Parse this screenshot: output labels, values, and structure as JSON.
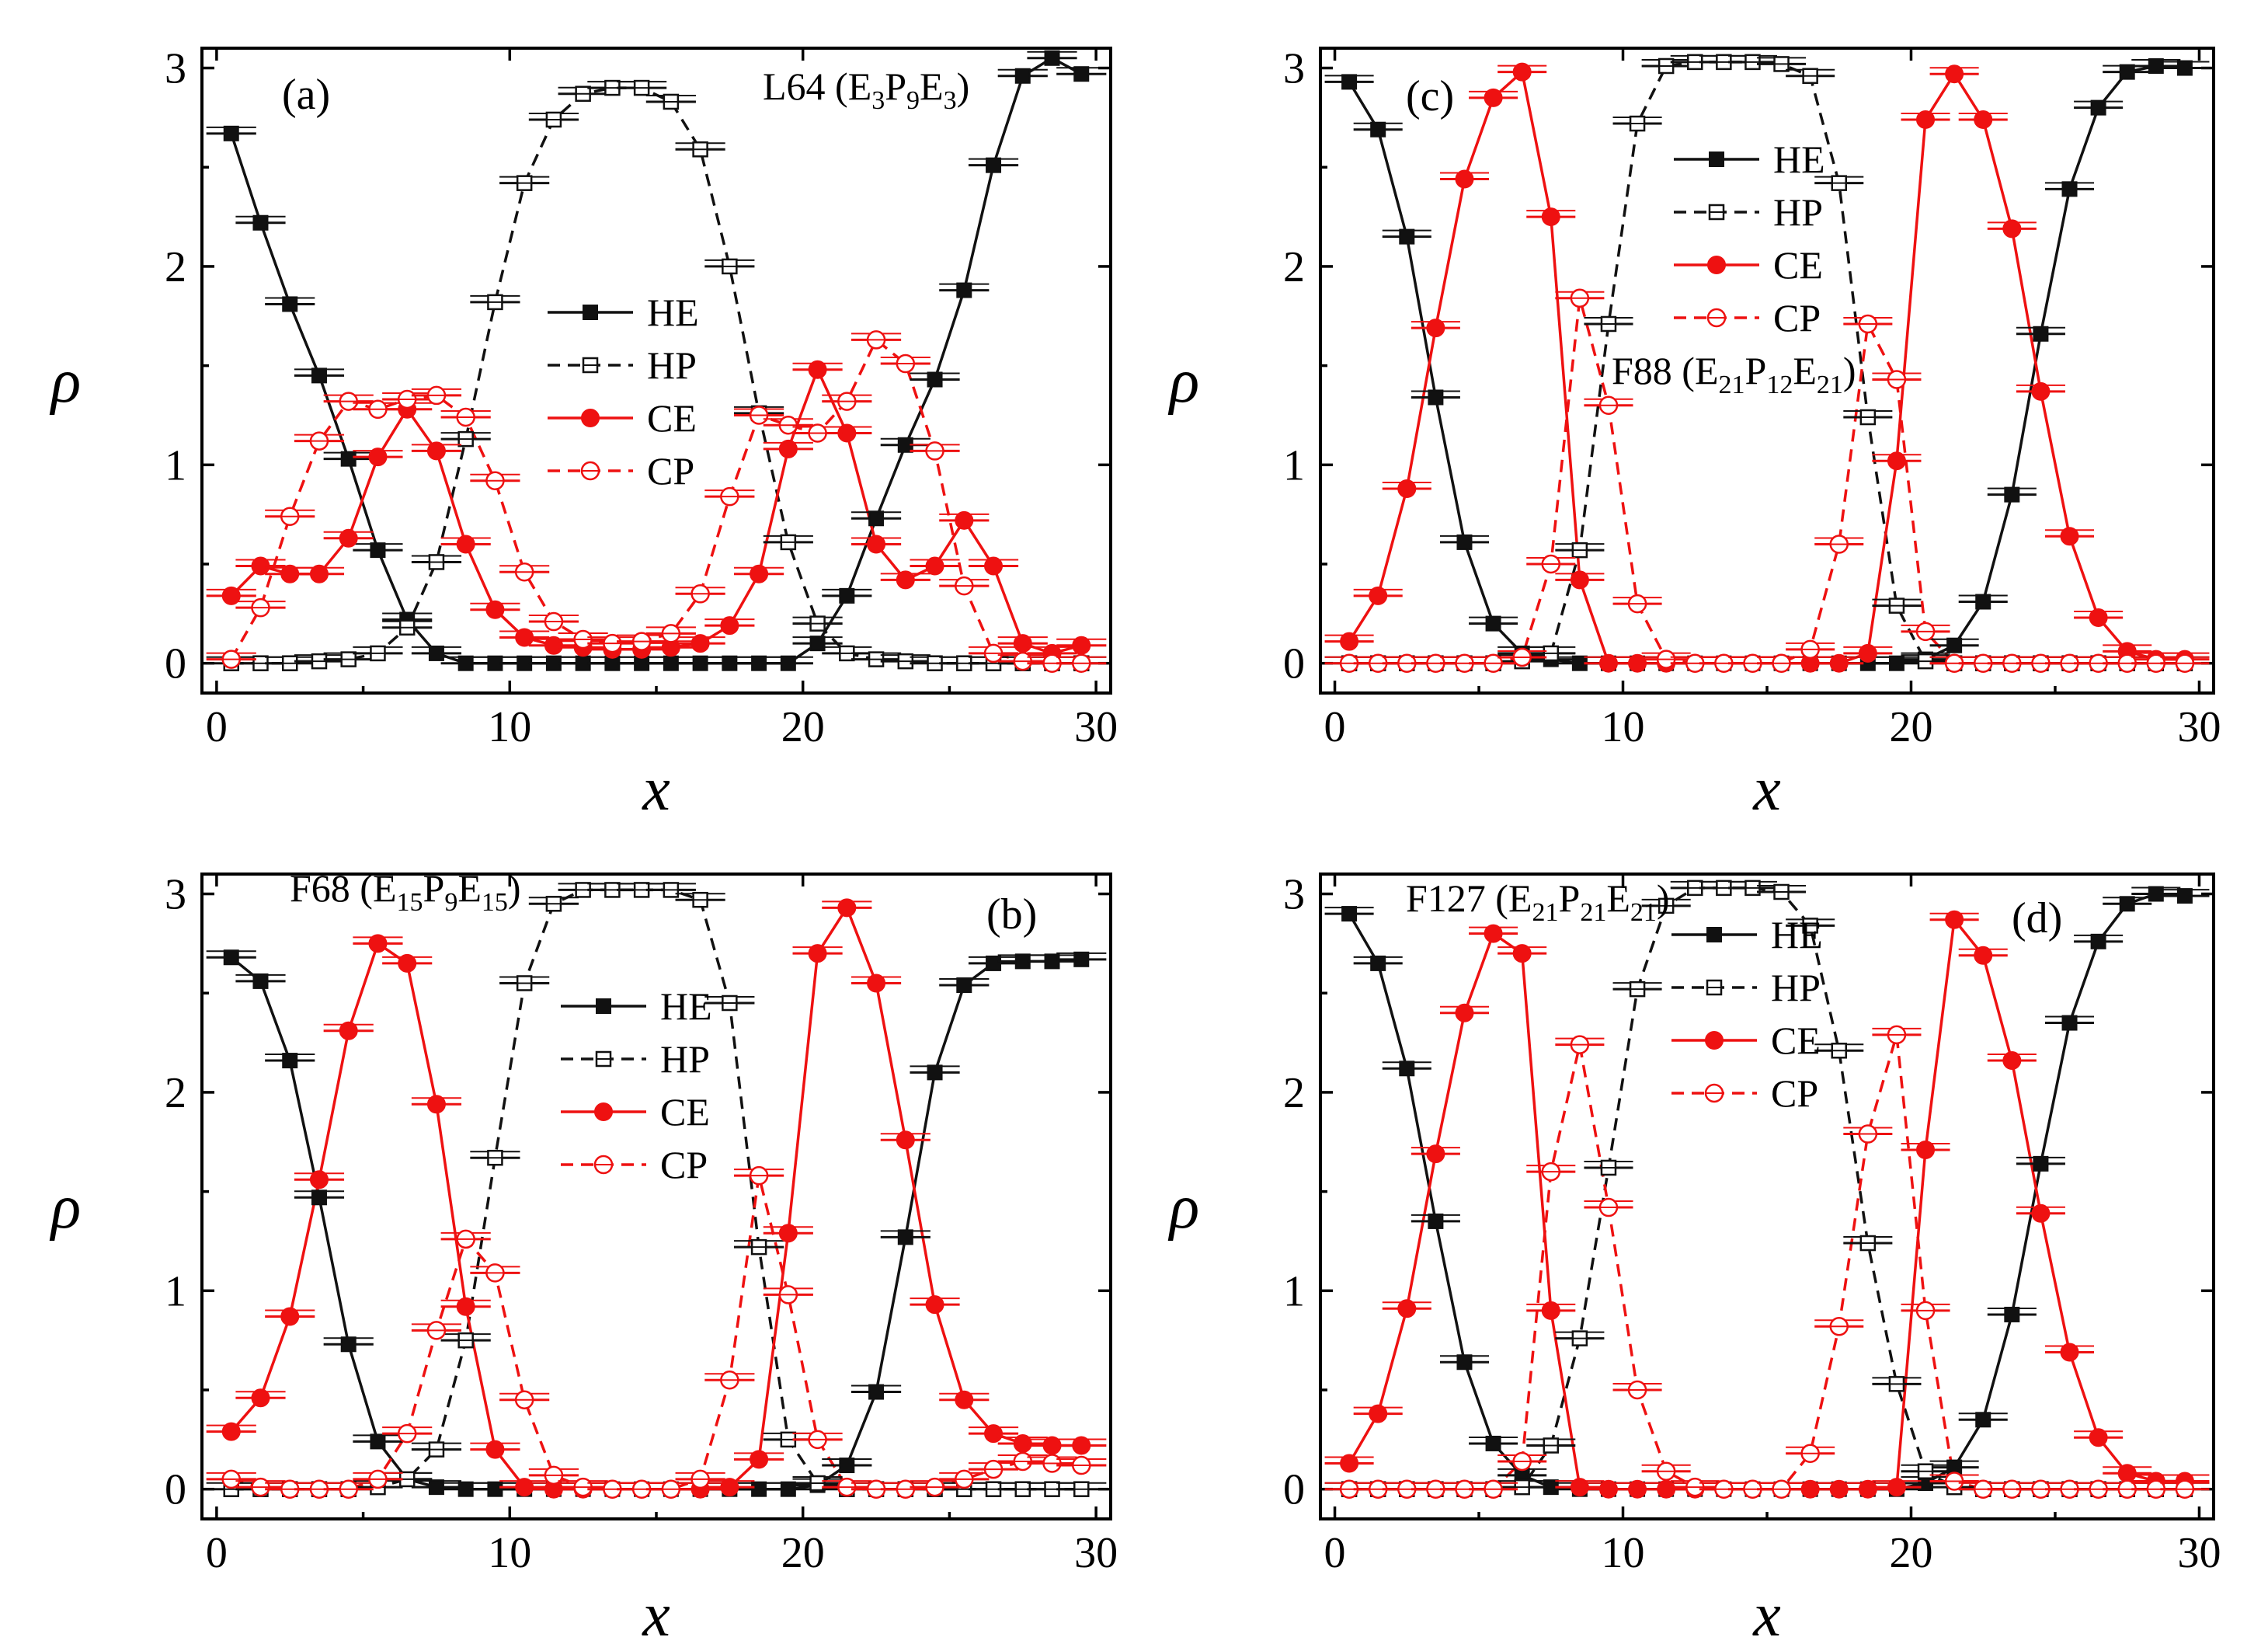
{
  "colors": {
    "black": "#111111",
    "red": "#ee1111",
    "frame": "#000000"
  },
  "chart_data": [
    {
      "id": "a",
      "type": "line",
      "panel_label": "(a)",
      "annotation": "L64 (E3P9E3)",
      "annotation_parts": [
        [
          "L64 (E",
          ""
        ],
        [
          "3",
          "sub"
        ],
        [
          "P",
          ""
        ],
        [
          "9",
          "sub"
        ],
        [
          "E",
          ""
        ],
        [
          "3",
          "sub"
        ],
        [
          ")",
          ""
        ]
      ],
      "xlabel": "x",
      "ylabel": "ρ",
      "xlim": [
        -0.5,
        30.5
      ],
      "ylim": [
        -0.15,
        3.1
      ],
      "xticks": [
        0,
        10,
        20,
        30
      ],
      "yticks": [
        0,
        1,
        2,
        3
      ],
      "legend_position": "center",
      "x": [
        0.5,
        1.5,
        2.5,
        3.5,
        4.5,
        5.5,
        6.5,
        7.5,
        8.5,
        9.5,
        10.5,
        11.5,
        12.5,
        13.5,
        14.5,
        15.5,
        16.5,
        17.5,
        18.5,
        19.5,
        20.5,
        21.5,
        22.5,
        23.5,
        24.5,
        25.5,
        26.5,
        27.5,
        28.5,
        29.5
      ],
      "series": [
        {
          "name": "HE",
          "style": "solid",
          "color": "black",
          "marker": "filled-square",
          "values": [
            2.67,
            2.22,
            1.81,
            1.45,
            1.03,
            0.57,
            0.22,
            0.05,
            0.0,
            0.0,
            0.0,
            0.0,
            0.0,
            0.0,
            0.0,
            0.0,
            0.0,
            0.0,
            0.0,
            0.0,
            0.1,
            0.34,
            0.73,
            1.1,
            1.43,
            1.88,
            2.51,
            2.96,
            3.05,
            2.97
          ]
        },
        {
          "name": "HP",
          "style": "dashed",
          "color": "black",
          "marker": "open-square",
          "values": [
            0.0,
            0.0,
            0.0,
            0.01,
            0.02,
            0.05,
            0.18,
            0.51,
            1.13,
            1.82,
            2.42,
            2.74,
            2.87,
            2.9,
            2.9,
            2.83,
            2.59,
            2.0,
            1.26,
            0.61,
            0.2,
            0.05,
            0.02,
            0.01,
            0.0,
            0.0,
            0.0,
            0.0,
            0.0,
            0.0
          ]
        },
        {
          "name": "CE",
          "style": "solid",
          "color": "red",
          "marker": "filled-circle",
          "values": [
            0.34,
            0.49,
            0.45,
            0.45,
            0.63,
            1.04,
            1.28,
            1.07,
            0.6,
            0.27,
            0.13,
            0.09,
            0.08,
            0.07,
            0.07,
            0.08,
            0.1,
            0.19,
            0.45,
            1.08,
            1.48,
            1.16,
            0.6,
            0.42,
            0.49,
            0.72,
            0.49,
            0.1,
            0.05,
            0.09
          ]
        },
        {
          "name": "CP",
          "style": "dashed",
          "color": "red",
          "marker": "open-circle",
          "values": [
            0.02,
            0.28,
            0.74,
            1.12,
            1.32,
            1.28,
            1.33,
            1.35,
            1.24,
            0.92,
            0.46,
            0.21,
            0.12,
            0.1,
            0.11,
            0.15,
            0.35,
            0.84,
            1.25,
            1.2,
            1.16,
            1.32,
            1.63,
            1.51,
            1.07,
            0.39,
            0.05,
            0.01,
            0.0,
            0.0
          ]
        }
      ]
    },
    {
      "id": "b",
      "type": "line",
      "panel_label": "(b)",
      "annotation": "F68 (E15P9E15)",
      "annotation_parts": [
        [
          "F68 (E",
          ""
        ],
        [
          "15",
          "sub"
        ],
        [
          "P",
          ""
        ],
        [
          "9",
          "sub"
        ],
        [
          "E",
          ""
        ],
        [
          "15",
          "sub"
        ],
        [
          ")",
          ""
        ]
      ],
      "xlabel": "x",
      "ylabel": "ρ",
      "xlim": [
        -0.5,
        30.5
      ],
      "ylim": [
        -0.15,
        3.1
      ],
      "xticks": [
        0,
        10,
        20,
        30
      ],
      "yticks": [
        0,
        1,
        2,
        3
      ],
      "legend_position": "center",
      "x": [
        0.5,
        1.5,
        2.5,
        3.5,
        4.5,
        5.5,
        6.5,
        7.5,
        8.5,
        9.5,
        10.5,
        11.5,
        12.5,
        13.5,
        14.5,
        15.5,
        16.5,
        17.5,
        18.5,
        19.5,
        20.5,
        21.5,
        22.5,
        23.5,
        24.5,
        25.5,
        26.5,
        27.5,
        28.5,
        29.5
      ],
      "series": [
        {
          "name": "HE",
          "style": "solid",
          "color": "black",
          "marker": "filled-square",
          "values": [
            2.68,
            2.56,
            2.16,
            1.47,
            0.73,
            0.24,
            0.05,
            0.01,
            0.0,
            0.0,
            0.0,
            0.0,
            0.0,
            0.0,
            0.0,
            0.0,
            0.0,
            0.0,
            0.0,
            0.0,
            0.02,
            0.12,
            0.49,
            1.27,
            2.1,
            2.54,
            2.65,
            2.66,
            2.66,
            2.67
          ]
        },
        {
          "name": "HP",
          "style": "dashed",
          "color": "black",
          "marker": "open-square",
          "values": [
            0.0,
            0.0,
            0.0,
            0.0,
            0.0,
            0.01,
            0.05,
            0.2,
            0.75,
            1.67,
            2.55,
            2.95,
            3.02,
            3.02,
            3.02,
            3.02,
            2.97,
            2.45,
            1.22,
            0.25,
            0.03,
            0.0,
            0.0,
            0.0,
            0.0,
            0.0,
            0.0,
            0.0,
            0.0,
            0.0
          ]
        },
        {
          "name": "CE",
          "style": "solid",
          "color": "red",
          "marker": "filled-circle",
          "values": [
            0.29,
            0.46,
            0.87,
            1.56,
            2.31,
            2.75,
            2.65,
            1.94,
            0.92,
            0.2,
            0.01,
            0.0,
            0.0,
            0.0,
            0.0,
            0.0,
            0.0,
            0.01,
            0.15,
            1.29,
            2.7,
            2.93,
            2.55,
            1.76,
            0.93,
            0.45,
            0.28,
            0.23,
            0.22,
            0.22
          ]
        },
        {
          "name": "CP",
          "style": "dashed",
          "color": "red",
          "marker": "open-circle",
          "values": [
            0.05,
            0.01,
            0.0,
            0.0,
            0.0,
            0.05,
            0.28,
            0.8,
            1.26,
            1.09,
            0.45,
            0.07,
            0.01,
            0.0,
            0.0,
            0.0,
            0.05,
            0.55,
            1.58,
            0.98,
            0.25,
            0.01,
            0.0,
            0.0,
            0.01,
            0.05,
            0.1,
            0.14,
            0.13,
            0.12
          ]
        }
      ]
    },
    {
      "id": "c",
      "type": "line",
      "panel_label": "(c)",
      "annotation": "F88 (E21P12E21)",
      "annotation_parts": [
        [
          "F88 (E",
          ""
        ],
        [
          "21",
          "sub"
        ],
        [
          "P",
          ""
        ],
        [
          "12",
          "sub"
        ],
        [
          "E",
          ""
        ],
        [
          "21",
          "sub"
        ],
        [
          ")",
          ""
        ]
      ],
      "xlabel": "x",
      "ylabel": "ρ",
      "xlim": [
        -0.5,
        30.5
      ],
      "ylim": [
        -0.15,
        3.1
      ],
      "xticks": [
        0,
        10,
        20,
        30
      ],
      "yticks": [
        0,
        1,
        2,
        3
      ],
      "legend_position": "top-center",
      "x": [
        0.5,
        1.5,
        2.5,
        3.5,
        4.5,
        5.5,
        6.5,
        7.5,
        8.5,
        9.5,
        10.5,
        11.5,
        12.5,
        13.5,
        14.5,
        15.5,
        16.5,
        17.5,
        18.5,
        19.5,
        20.5,
        21.5,
        22.5,
        23.5,
        24.5,
        25.5,
        26.5,
        27.5,
        28.5,
        29.5
      ],
      "series": [
        {
          "name": "HE",
          "style": "solid",
          "color": "black",
          "marker": "filled-square",
          "values": [
            2.93,
            2.69,
            2.15,
            1.34,
            0.61,
            0.2,
            0.05,
            0.02,
            0.0,
            0.0,
            0.0,
            0.0,
            0.0,
            0.0,
            0.0,
            0.0,
            0.0,
            0.0,
            0.0,
            0.0,
            0.02,
            0.09,
            0.31,
            0.85,
            1.66,
            2.39,
            2.8,
            2.98,
            3.01,
            3.0
          ]
        },
        {
          "name": "HP",
          "style": "dashed",
          "color": "black",
          "marker": "open-square",
          "values": [
            0.0,
            0.0,
            0.0,
            0.0,
            0.0,
            0.0,
            0.01,
            0.05,
            0.57,
            1.71,
            2.72,
            3.01,
            3.03,
            3.03,
            3.03,
            3.02,
            2.96,
            2.42,
            1.24,
            0.29,
            0.01,
            0.0,
            0.0,
            0.0,
            0.0,
            0.0,
            0.0,
            0.0,
            0.0,
            0.0
          ]
        },
        {
          "name": "CE",
          "style": "solid",
          "color": "red",
          "marker": "filled-circle",
          "values": [
            0.11,
            0.34,
            0.88,
            1.69,
            2.44,
            2.85,
            2.98,
            2.25,
            0.42,
            0.0,
            0.0,
            0.0,
            0.0,
            0.0,
            0.0,
            0.0,
            0.0,
            0.0,
            0.05,
            1.02,
            2.74,
            2.97,
            2.74,
            2.19,
            1.37,
            0.64,
            0.23,
            0.06,
            0.02,
            0.02
          ]
        },
        {
          "name": "CP",
          "style": "dashed",
          "color": "red",
          "marker": "open-circle",
          "values": [
            0.0,
            0.0,
            0.0,
            0.0,
            0.0,
            0.0,
            0.03,
            0.5,
            1.84,
            1.3,
            0.3,
            0.02,
            0.0,
            0.0,
            0.0,
            0.0,
            0.07,
            0.6,
            1.71,
            1.43,
            0.16,
            0.0,
            0.0,
            0.0,
            0.0,
            0.0,
            0.0,
            0.0,
            0.0,
            0.0
          ]
        }
      ]
    },
    {
      "id": "d",
      "type": "line",
      "panel_label": "(d)",
      "annotation": "F127 (E21P21E21)",
      "annotation_parts": [
        [
          "F127 (E",
          ""
        ],
        [
          "21",
          "sub"
        ],
        [
          "P",
          ""
        ],
        [
          "21",
          "sub"
        ],
        [
          "E",
          ""
        ],
        [
          "21",
          "sub"
        ],
        [
          ")",
          ""
        ]
      ],
      "xlabel": "x",
      "ylabel": "ρ",
      "xlim": [
        -0.5,
        30.5
      ],
      "ylim": [
        -0.15,
        3.1
      ],
      "xticks": [
        0,
        10,
        20,
        30
      ],
      "yticks": [
        0,
        1,
        2,
        3
      ],
      "legend_position": "top-center",
      "x": [
        0.5,
        1.5,
        2.5,
        3.5,
        4.5,
        5.5,
        6.5,
        7.5,
        8.5,
        9.5,
        10.5,
        11.5,
        12.5,
        13.5,
        14.5,
        15.5,
        16.5,
        17.5,
        18.5,
        19.5,
        20.5,
        21.5,
        22.5,
        23.5,
        24.5,
        25.5,
        26.5,
        27.5,
        28.5,
        29.5
      ],
      "series": [
        {
          "name": "HE",
          "style": "solid",
          "color": "black",
          "marker": "filled-square",
          "values": [
            2.9,
            2.65,
            2.12,
            1.35,
            0.64,
            0.23,
            0.07,
            0.01,
            0.0,
            0.0,
            0.0,
            0.0,
            0.0,
            0.0,
            0.0,
            0.0,
            0.0,
            0.0,
            0.0,
            0.0,
            0.03,
            0.11,
            0.35,
            0.88,
            1.64,
            2.35,
            2.76,
            2.95,
            3.0,
            2.99
          ]
        },
        {
          "name": "HP",
          "style": "dashed",
          "color": "black",
          "marker": "open-square",
          "values": [
            0.0,
            0.0,
            0.0,
            0.0,
            0.0,
            0.0,
            0.01,
            0.22,
            0.76,
            1.62,
            2.52,
            2.94,
            3.03,
            3.03,
            3.03,
            3.01,
            2.84,
            2.21,
            1.24,
            0.53,
            0.09,
            0.01,
            0.0,
            0.0,
            0.0,
            0.0,
            0.0,
            0.0,
            0.0,
            0.0
          ]
        },
        {
          "name": "CE",
          "style": "solid",
          "color": "red",
          "marker": "filled-circle",
          "values": [
            0.13,
            0.38,
            0.91,
            1.69,
            2.4,
            2.8,
            2.7,
            0.9,
            0.01,
            0.0,
            0.0,
            0.0,
            0.0,
            0.0,
            0.0,
            0.0,
            0.0,
            0.0,
            0.0,
            0.01,
            1.71,
            2.87,
            2.69,
            2.16,
            1.39,
            0.69,
            0.26,
            0.08,
            0.04,
            0.04
          ]
        },
        {
          "name": "CP",
          "style": "dashed",
          "color": "red",
          "marker": "open-circle",
          "values": [
            0.0,
            0.0,
            0.0,
            0.0,
            0.0,
            0.0,
            0.14,
            1.6,
            2.24,
            1.42,
            0.5,
            0.09,
            0.01,
            0.0,
            0.0,
            0.0,
            0.18,
            0.82,
            1.79,
            2.29,
            0.9,
            0.04,
            0.0,
            0.0,
            0.0,
            0.0,
            0.0,
            0.0,
            0.0,
            0.0
          ]
        }
      ]
    }
  ]
}
